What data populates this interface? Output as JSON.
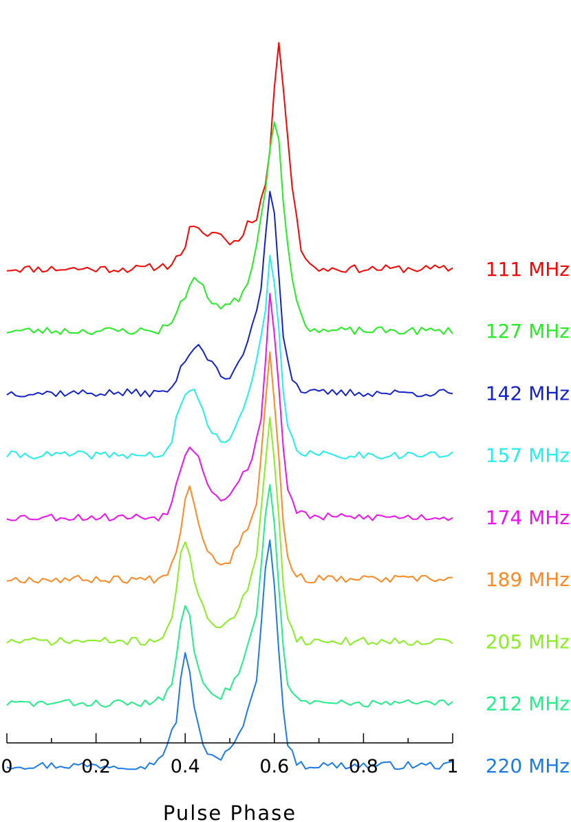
{
  "chart_data": {
    "type": "line",
    "xlabel": "Pulse Phase",
    "ylabel": "",
    "xlim": [
      0,
      1
    ],
    "xticks": [
      {
        "value": 0,
        "label": "0"
      },
      {
        "value": 0.2,
        "label": "0.2"
      },
      {
        "value": 0.4,
        "label": "0.4"
      },
      {
        "value": 0.6,
        "label": "0.6"
      },
      {
        "value": 0.8,
        "label": "0.8"
      },
      {
        "value": 1,
        "label": "1"
      }
    ],
    "minor_tick_step": 0.1,
    "grid": false,
    "legend": "inline labels at right of each trace",
    "stacked_offset_note": "profiles vertically offset, lowest frequency on top",
    "series": [
      {
        "name": "111 MHz",
        "color": "#ff0000",
        "baseline": 8.15,
        "noise_seed": 11,
        "points": [
          [
            0.0,
            0
          ],
          [
            0.3,
            0
          ],
          [
            0.33,
            0.03
          ],
          [
            0.36,
            0.05
          ],
          [
            0.38,
            0.15
          ],
          [
            0.4,
            0.35
          ],
          [
            0.41,
            0.6
          ],
          [
            0.42,
            0.62
          ],
          [
            0.44,
            0.52
          ],
          [
            0.46,
            0.56
          ],
          [
            0.48,
            0.52
          ],
          [
            0.5,
            0.4
          ],
          [
            0.52,
            0.43
          ],
          [
            0.54,
            0.7
          ],
          [
            0.56,
            0.8
          ],
          [
            0.58,
            1.3
          ],
          [
            0.59,
            1.8
          ],
          [
            0.6,
            2.8
          ],
          [
            0.61,
            3.4
          ],
          [
            0.62,
            2.8
          ],
          [
            0.64,
            1.3
          ],
          [
            0.66,
            0.3
          ],
          [
            0.68,
            0.05
          ],
          [
            0.7,
            0.0
          ],
          [
            1.0,
            0
          ]
        ]
      },
      {
        "name": "127 MHz",
        "color": "#22ee22",
        "baseline": 7.2,
        "noise_seed": 23,
        "points": [
          [
            0.0,
            0
          ],
          [
            0.34,
            0
          ],
          [
            0.36,
            0.1
          ],
          [
            0.38,
            0.25
          ],
          [
            0.4,
            0.55
          ],
          [
            0.42,
            0.82
          ],
          [
            0.44,
            0.65
          ],
          [
            0.46,
            0.45
          ],
          [
            0.48,
            0.38
          ],
          [
            0.5,
            0.4
          ],
          [
            0.52,
            0.5
          ],
          [
            0.54,
            0.75
          ],
          [
            0.56,
            1.3
          ],
          [
            0.58,
            2.2
          ],
          [
            0.59,
            2.8
          ],
          [
            0.6,
            3.25
          ],
          [
            0.61,
            2.9
          ],
          [
            0.62,
            2.0
          ],
          [
            0.64,
            0.75
          ],
          [
            0.66,
            0.2
          ],
          [
            0.68,
            0.05
          ],
          [
            0.7,
            0
          ],
          [
            1.0,
            0
          ]
        ]
      },
      {
        "name": "142 MHz",
        "color": "#1122cc",
        "baseline": 6.25,
        "noise_seed": 37,
        "points": [
          [
            0.0,
            0
          ],
          [
            0.35,
            0
          ],
          [
            0.37,
            0.08
          ],
          [
            0.39,
            0.35
          ],
          [
            0.41,
            0.65
          ],
          [
            0.43,
            0.75
          ],
          [
            0.45,
            0.55
          ],
          [
            0.47,
            0.35
          ],
          [
            0.49,
            0.2
          ],
          [
            0.51,
            0.3
          ],
          [
            0.53,
            0.6
          ],
          [
            0.55,
            1.0
          ],
          [
            0.57,
            1.6
          ],
          [
            0.58,
            2.4
          ],
          [
            0.59,
            3.1
          ],
          [
            0.6,
            2.8
          ],
          [
            0.61,
            1.8
          ],
          [
            0.62,
            0.9
          ],
          [
            0.64,
            0.2
          ],
          [
            0.66,
            0.05
          ],
          [
            0.68,
            0
          ],
          [
            1.0,
            0
          ]
        ]
      },
      {
        "name": "157 MHz",
        "color": "#22eeee",
        "baseline": 5.3,
        "noise_seed": 41,
        "points": [
          [
            0.0,
            0
          ],
          [
            0.35,
            0
          ],
          [
            0.37,
            0.15
          ],
          [
            0.38,
            0.55
          ],
          [
            0.4,
            0.95
          ],
          [
            0.42,
            1.0
          ],
          [
            0.44,
            0.65
          ],
          [
            0.46,
            0.35
          ],
          [
            0.48,
            0.2
          ],
          [
            0.5,
            0.3
          ],
          [
            0.52,
            0.5
          ],
          [
            0.54,
            0.9
          ],
          [
            0.56,
            1.4
          ],
          [
            0.58,
            2.2
          ],
          [
            0.59,
            3.0
          ],
          [
            0.6,
            2.6
          ],
          [
            0.61,
            1.9
          ],
          [
            0.62,
            1.0
          ],
          [
            0.63,
            0.4
          ],
          [
            0.65,
            0.1
          ],
          [
            0.67,
            0.02
          ],
          [
            0.7,
            0
          ],
          [
            1.0,
            0
          ]
        ]
      },
      {
        "name": "174 MHz",
        "color": "#ee11ee",
        "baseline": 4.35,
        "noise_seed": 53,
        "points": [
          [
            0.0,
            0
          ],
          [
            0.34,
            0
          ],
          [
            0.36,
            0.1
          ],
          [
            0.37,
            0.2
          ],
          [
            0.38,
            0.5
          ],
          [
            0.4,
            1.0
          ],
          [
            0.41,
            1.1
          ],
          [
            0.43,
            0.95
          ],
          [
            0.45,
            0.55
          ],
          [
            0.47,
            0.3
          ],
          [
            0.49,
            0.3
          ],
          [
            0.51,
            0.42
          ],
          [
            0.53,
            0.65
          ],
          [
            0.55,
            0.9
          ],
          [
            0.57,
            1.5
          ],
          [
            0.58,
            2.4
          ],
          [
            0.59,
            3.4
          ],
          [
            0.6,
            2.8
          ],
          [
            0.61,
            2.0
          ],
          [
            0.62,
            1.1
          ],
          [
            0.63,
            0.4
          ],
          [
            0.65,
            0.1
          ],
          [
            0.67,
            0.02
          ],
          [
            0.7,
            0
          ],
          [
            1.0,
            0
          ]
        ]
      },
      {
        "name": "189 MHz",
        "color": "#ff8822",
        "baseline": 3.4,
        "noise_seed": 67,
        "points": [
          [
            0.0,
            0
          ],
          [
            0.34,
            0
          ],
          [
            0.36,
            0.12
          ],
          [
            0.38,
            0.45
          ],
          [
            0.39,
            0.75
          ],
          [
            0.4,
            1.25
          ],
          [
            0.41,
            1.4
          ],
          [
            0.42,
            1.2
          ],
          [
            0.44,
            0.6
          ],
          [
            0.46,
            0.35
          ],
          [
            0.48,
            0.25
          ],
          [
            0.5,
            0.3
          ],
          [
            0.52,
            0.55
          ],
          [
            0.54,
            0.8
          ],
          [
            0.56,
            1.2
          ],
          [
            0.57,
            1.9
          ],
          [
            0.58,
            2.7
          ],
          [
            0.59,
            3.45
          ],
          [
            0.6,
            2.7
          ],
          [
            0.61,
            1.9
          ],
          [
            0.62,
            0.9
          ],
          [
            0.63,
            0.3
          ],
          [
            0.65,
            0.05
          ],
          [
            0.67,
            0
          ],
          [
            1.0,
            0
          ]
        ]
      },
      {
        "name": "205 MHz",
        "color": "#88ee22",
        "baseline": 2.45,
        "noise_seed": 71,
        "points": [
          [
            0.0,
            0
          ],
          [
            0.33,
            0
          ],
          [
            0.35,
            0.1
          ],
          [
            0.37,
            0.35
          ],
          [
            0.38,
            0.75
          ],
          [
            0.39,
            1.3
          ],
          [
            0.4,
            1.55
          ],
          [
            0.41,
            1.35
          ],
          [
            0.42,
            0.95
          ],
          [
            0.44,
            0.5
          ],
          [
            0.46,
            0.3
          ],
          [
            0.48,
            0.22
          ],
          [
            0.5,
            0.3
          ],
          [
            0.52,
            0.5
          ],
          [
            0.54,
            0.8
          ],
          [
            0.56,
            1.25
          ],
          [
            0.57,
            2.0
          ],
          [
            0.58,
            2.7
          ],
          [
            0.59,
            3.45
          ],
          [
            0.6,
            2.8
          ],
          [
            0.61,
            1.9
          ],
          [
            0.62,
            0.9
          ],
          [
            0.63,
            0.35
          ],
          [
            0.65,
            0.05
          ],
          [
            0.67,
            0
          ],
          [
            1.0,
            0
          ]
        ]
      },
      {
        "name": "212 MHz",
        "color": "#22ee88",
        "baseline": 1.5,
        "noise_seed": 83,
        "points": [
          [
            0.0,
            0
          ],
          [
            0.33,
            0
          ],
          [
            0.35,
            0.08
          ],
          [
            0.37,
            0.3
          ],
          [
            0.38,
            0.7
          ],
          [
            0.39,
            1.2
          ],
          [
            0.4,
            1.55
          ],
          [
            0.41,
            1.3
          ],
          [
            0.42,
            0.85
          ],
          [
            0.44,
            0.35
          ],
          [
            0.46,
            0.2
          ],
          [
            0.48,
            0.12
          ],
          [
            0.5,
            0.25
          ],
          [
            0.52,
            0.5
          ],
          [
            0.54,
            0.85
          ],
          [
            0.56,
            1.35
          ],
          [
            0.57,
            2.1
          ],
          [
            0.58,
            2.9
          ],
          [
            0.59,
            3.4
          ],
          [
            0.6,
            2.7
          ],
          [
            0.61,
            1.8
          ],
          [
            0.62,
            0.9
          ],
          [
            0.63,
            0.3
          ],
          [
            0.65,
            0.05
          ],
          [
            0.67,
            0
          ],
          [
            1.0,
            0
          ]
        ]
      },
      {
        "name": "220 MHz",
        "color": "#1a7ae8",
        "baseline": 0.55,
        "noise_seed": 97,
        "points": [
          [
            0.0,
            0
          ],
          [
            0.32,
            0
          ],
          [
            0.34,
            0.1
          ],
          [
            0.36,
            0.3
          ],
          [
            0.38,
            0.7
          ],
          [
            0.39,
            1.3
          ],
          [
            0.4,
            1.75
          ],
          [
            0.41,
            1.45
          ],
          [
            0.42,
            0.85
          ],
          [
            0.44,
            0.3
          ],
          [
            0.46,
            0.15
          ],
          [
            0.48,
            0.12
          ],
          [
            0.5,
            0.22
          ],
          [
            0.52,
            0.45
          ],
          [
            0.54,
            0.8
          ],
          [
            0.56,
            1.35
          ],
          [
            0.57,
            2.15
          ],
          [
            0.58,
            3.0
          ],
          [
            0.59,
            3.5
          ],
          [
            0.6,
            2.7
          ],
          [
            0.61,
            1.8
          ],
          [
            0.62,
            0.9
          ],
          [
            0.63,
            0.3
          ],
          [
            0.65,
            0.05
          ],
          [
            0.67,
            0
          ],
          [
            1.0,
            0
          ]
        ]
      }
    ]
  }
}
